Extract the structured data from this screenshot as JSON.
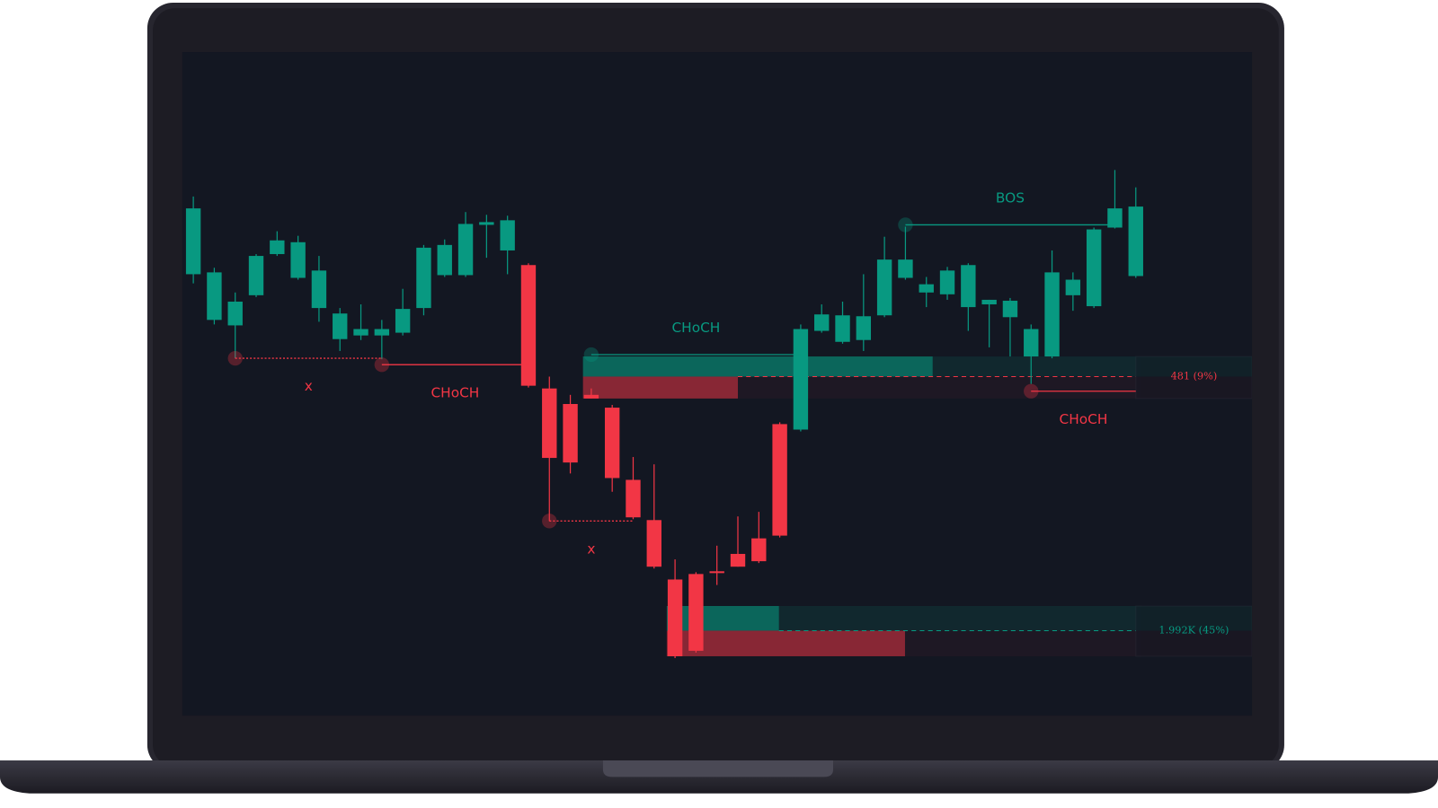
{
  "chart_data": {
    "type": "candlestick",
    "up_color": "#089981",
    "down_color": "#f23645",
    "ylim": [
      17,
      743
    ],
    "ohlc": [
      [
        500,
        585,
        490,
        572
      ],
      [
        450,
        507,
        445,
        502
      ],
      [
        444,
        480,
        408,
        470
      ],
      [
        477,
        522,
        475,
        520
      ],
      [
        522,
        547,
        520,
        537
      ],
      [
        496,
        542,
        494,
        535
      ],
      [
        463,
        520,
        448,
        504
      ],
      [
        429,
        463,
        416,
        457
      ],
      [
        433,
        467,
        428,
        440
      ],
      [
        433,
        450,
        407,
        440
      ],
      [
        436,
        484,
        433,
        462
      ],
      [
        463,
        532,
        455,
        529
      ],
      [
        499,
        538,
        497,
        532
      ],
      [
        499,
        568,
        497,
        555
      ],
      [
        554,
        565,
        518,
        557
      ],
      [
        526,
        564,
        500,
        559
      ],
      [
        510,
        512,
        376,
        378
      ],
      [
        375,
        388,
        230,
        299
      ],
      [
        358,
        368,
        282,
        294
      ],
      [
        368,
        375,
        364,
        364
      ],
      [
        354,
        357,
        262,
        277
      ],
      [
        275,
        300,
        232,
        234
      ],
      [
        231,
        292,
        178,
        180
      ],
      [
        166,
        188,
        80,
        82
      ],
      [
        172,
        174,
        86,
        88
      ],
      [
        175,
        203,
        160,
        174
      ],
      [
        194,
        235,
        180,
        180
      ],
      [
        211,
        240,
        184,
        186
      ],
      [
        336,
        338,
        212,
        214
      ],
      [
        330,
        445,
        328,
        440
      ],
      [
        438,
        467,
        436,
        456
      ],
      [
        426,
        470,
        424,
        455
      ],
      [
        428,
        500,
        416,
        454
      ],
      [
        455,
        541,
        453,
        516
      ],
      [
        496,
        552,
        494,
        516
      ],
      [
        480,
        497,
        464,
        489
      ],
      [
        478,
        508,
        472,
        504
      ],
      [
        464,
        512,
        438,
        510
      ],
      [
        467,
        472,
        420,
        472
      ],
      [
        453,
        474,
        410,
        471
      ],
      [
        410,
        445,
        380,
        440
      ],
      [
        410,
        526,
        408,
        502
      ],
      [
        477,
        502,
        460,
        494
      ],
      [
        465,
        551,
        463,
        549
      ],
      [
        551,
        614,
        550,
        572
      ],
      [
        498,
        595,
        496,
        574
      ]
    ],
    "structures": [
      {
        "label": "x",
        "color": "#f23645",
        "from": 2,
        "to": 9,
        "price": 408,
        "style": "dotted",
        "label_side": "below"
      },
      {
        "label": "CHoCH",
        "color": "#f23645",
        "from": 9,
        "to": 16,
        "price": 401,
        "style": "solid",
        "label_side": "below"
      },
      {
        "label": "x",
        "color": "#f23645",
        "from": 17,
        "to": 21,
        "price": 230,
        "style": "dotted",
        "label_side": "below"
      },
      {
        "label": "CHoCH",
        "color": "#089981",
        "from": 19,
        "to": 29,
        "price": 412,
        "style": "solid",
        "label_side": "above"
      },
      {
        "label": "BOS",
        "color": "#089981",
        "from": 34,
        "to": 44,
        "price": 554,
        "style": "solid",
        "label_side": "above"
      },
      {
        "label": "CHoCH",
        "color": "#f23645",
        "from": 40,
        "to": 45,
        "price": 372,
        "style": "solid",
        "label_side": "below"
      }
    ],
    "zones": [
      {
        "label": "481 (9%)",
        "from": 19,
        "top": 410,
        "mid": 388,
        "bottom": 364,
        "buy_end": 35.3,
        "sell_end": 26,
        "dash_color": "#f23645"
      },
      {
        "label": "1.992K (45%)",
        "from": 23,
        "top": 137,
        "mid": 110,
        "bottom": 82,
        "buy_end": 27.96,
        "sell_end": 33.98,
        "dash_color": "#089981"
      }
    ]
  }
}
